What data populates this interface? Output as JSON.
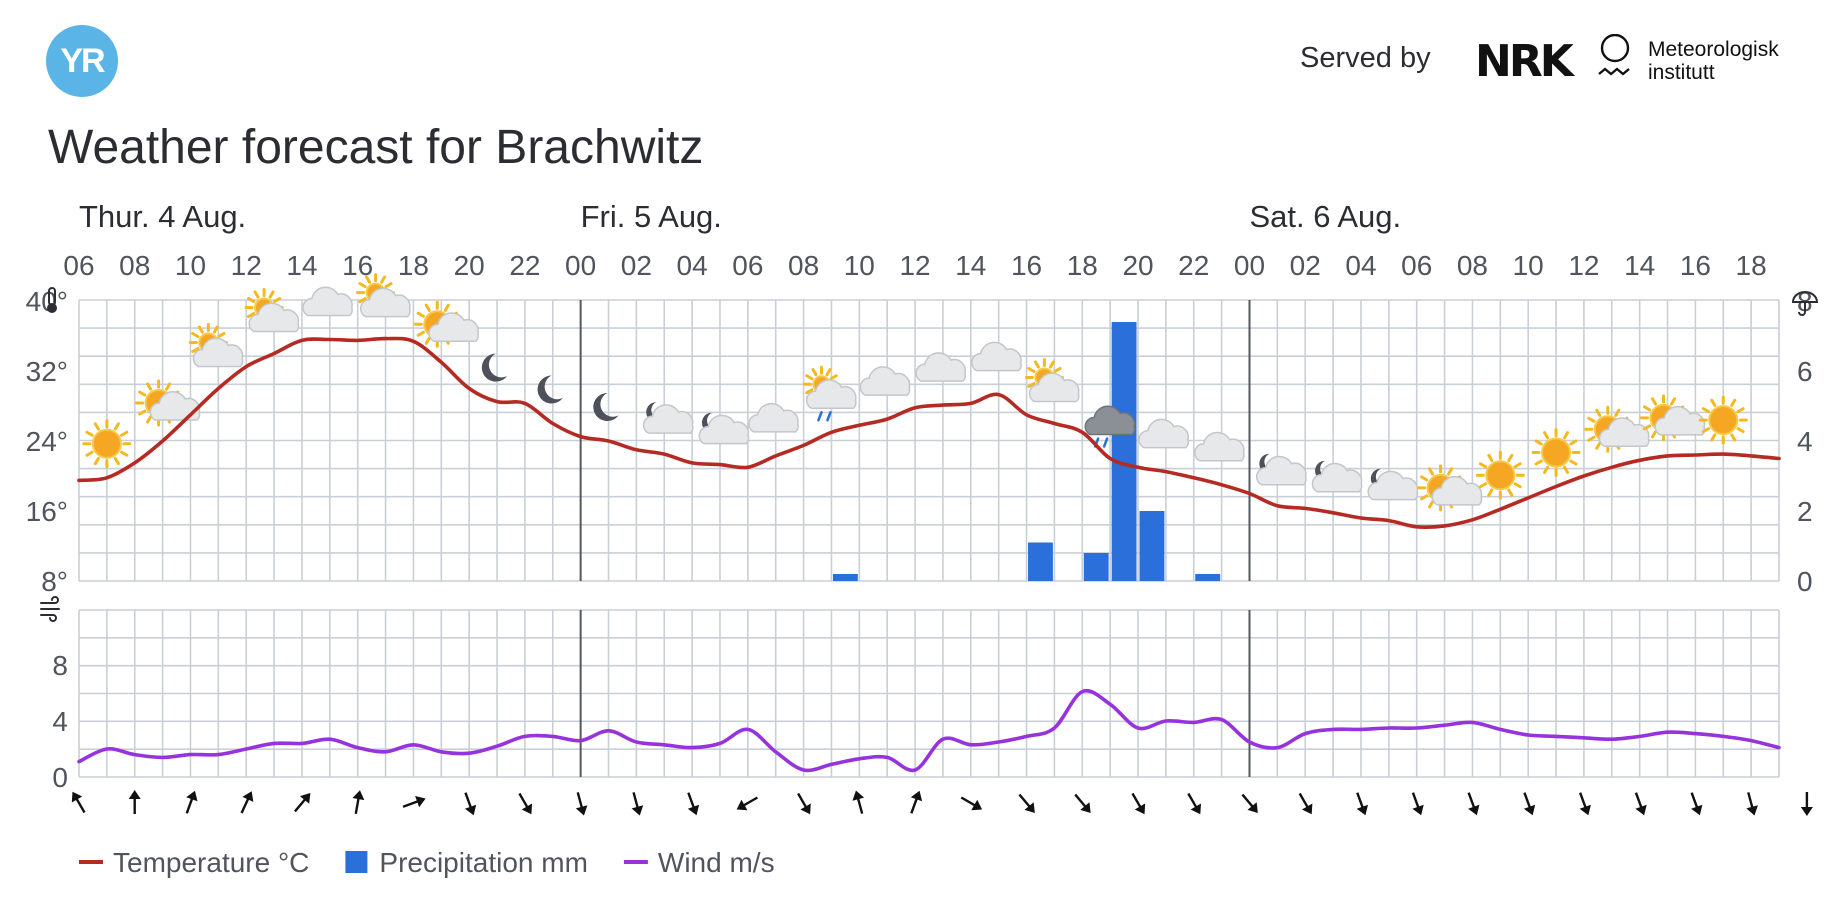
{
  "header": {
    "logo_text": "YR",
    "served_by": "Served by",
    "nrk_logo_text": "NRK",
    "met_line1": "Meteorologisk",
    "met_line2": "institutt"
  },
  "page": {
    "title": "Weather forecast for Brachwitz"
  },
  "colors": {
    "temperature": "#b52a22",
    "precipitation": "#2b6fda",
    "wind": "#9733dc",
    "grid": "#c9cfd7",
    "accent": "#5ab4e5"
  },
  "icons": {
    "temperature_axis": "thermometer-icon",
    "precipitation_axis": "umbrella-icon",
    "wind_axis": "wind-icon"
  },
  "chart_data": {
    "type": "line",
    "x_unit": "hour",
    "start": "Thu 4 Aug 06:00",
    "days": [
      {
        "label": "Thur. 4 Aug.",
        "start_hour": 0
      },
      {
        "label": "Fri. 5 Aug.",
        "start_hour": 18
      },
      {
        "label": "Sat. 6 Aug.",
        "start_hour": 42
      }
    ],
    "hour_ticks": [
      "06",
      "08",
      "10",
      "12",
      "14",
      "16",
      "18",
      "20",
      "22",
      "00",
      "02",
      "04",
      "06",
      "08",
      "10",
      "12",
      "14",
      "16",
      "18",
      "20",
      "22",
      "00",
      "02",
      "04",
      "06",
      "08",
      "10",
      "12",
      "14",
      "16",
      "18"
    ],
    "temperature_axis": {
      "ticks": [
        "40°",
        "32°",
        "24°",
        "16°",
        "8°"
      ],
      "min": 8,
      "max": 40
    },
    "precipitation_axis": {
      "ticks": [
        "8",
        "6",
        "4",
        "2",
        "0"
      ],
      "min": 0,
      "max": 8
    },
    "wind_axis": {
      "ticks": [
        "8",
        "4",
        "0"
      ],
      "min": 0,
      "max": 12
    },
    "series": [
      {
        "name": "Temperature °C",
        "unit": "°C",
        "values": [
          19.5,
          19.8,
          21.5,
          24.0,
          27.0,
          30.0,
          32.5,
          34.0,
          35.5,
          35.6,
          35.5,
          35.7,
          35.4,
          33.0,
          30.0,
          28.5,
          28.3,
          26.0,
          24.5,
          24.0,
          23.0,
          22.5,
          21.5,
          21.3,
          21.0,
          22.3,
          23.5,
          25.0,
          25.8,
          26.5,
          27.8,
          28.1,
          28.3,
          29.3,
          27.0,
          26.0,
          25.0,
          22.0,
          21.0,
          20.5,
          19.8,
          19.0,
          18.0,
          16.6,
          16.3,
          15.8,
          15.2,
          14.9,
          14.2,
          14.3,
          15.0,
          16.2,
          17.5,
          18.8,
          20.0,
          21.0,
          21.8,
          22.3,
          22.4,
          22.5,
          22.3,
          22.0
        ]
      },
      {
        "name": "Precipitation mm",
        "unit": "mm",
        "bars": [
          {
            "hour": 27,
            "value": 0.2
          },
          {
            "hour": 34,
            "value": 1.1
          },
          {
            "hour": 36,
            "value": 0.8
          },
          {
            "hour": 37,
            "value": 7.4
          },
          {
            "hour": 38,
            "value": 2.0
          },
          {
            "hour": 40,
            "value": 0.2
          }
        ]
      },
      {
        "name": "Wind m/s",
        "unit": "m/s",
        "values": [
          1.1,
          2.0,
          1.6,
          1.4,
          1.6,
          1.6,
          2.0,
          2.4,
          2.4,
          2.7,
          2.1,
          1.8,
          2.3,
          1.8,
          1.7,
          2.2,
          2.9,
          2.9,
          2.6,
          3.3,
          2.5,
          2.3,
          2.1,
          2.4,
          3.4,
          1.8,
          0.5,
          0.9,
          1.3,
          1.4,
          0.5,
          2.7,
          2.3,
          2.5,
          2.9,
          3.5,
          6.1,
          5.2,
          3.5,
          4.0,
          3.9,
          4.1,
          2.5,
          2.1,
          3.1,
          3.4,
          3.4,
          3.5,
          3.5,
          3.7,
          3.9,
          3.4,
          3.0,
          2.9,
          2.8,
          2.7,
          2.9,
          3.2,
          3.1,
          2.9,
          2.6,
          2.1
        ]
      }
    ],
    "wind_directions_deg": [
      -30,
      0,
      20,
      25,
      40,
      10,
      70,
      160,
      150,
      165,
      165,
      160,
      -120,
      150,
      -15,
      20,
      120,
      140,
      140,
      150,
      150,
      140,
      150,
      160,
      160,
      160,
      160,
      160,
      160,
      160,
      165,
      180
    ],
    "weather_symbols": [
      {
        "hour": 1,
        "symbol": "clear-sky-day"
      },
      {
        "hour": 3,
        "symbol": "fair-day"
      },
      {
        "hour": 5,
        "symbol": "partly-cloudy-day"
      },
      {
        "hour": 7,
        "symbol": "partly-cloudy-day"
      },
      {
        "hour": 9,
        "symbol": "cloudy"
      },
      {
        "hour": 11,
        "symbol": "partly-cloudy-day"
      },
      {
        "hour": 13,
        "symbol": "fair-day"
      },
      {
        "hour": 15,
        "symbol": "clear-sky-night"
      },
      {
        "hour": 17,
        "symbol": "clear-sky-night"
      },
      {
        "hour": 19,
        "symbol": "clear-sky-night"
      },
      {
        "hour": 21,
        "symbol": "partly-cloudy-night"
      },
      {
        "hour": 23,
        "symbol": "partly-cloudy-night"
      },
      {
        "hour": 25,
        "symbol": "cloudy"
      },
      {
        "hour": 27,
        "symbol": "light-rain-showers-day"
      },
      {
        "hour": 29,
        "symbol": "cloudy"
      },
      {
        "hour": 31,
        "symbol": "cloudy"
      },
      {
        "hour": 33,
        "symbol": "cloudy"
      },
      {
        "hour": 35,
        "symbol": "partly-cloudy-day"
      },
      {
        "hour": 37,
        "symbol": "rain"
      },
      {
        "hour": 39,
        "symbol": "cloudy"
      },
      {
        "hour": 41,
        "symbol": "cloudy"
      },
      {
        "hour": 43,
        "symbol": "partly-cloudy-night"
      },
      {
        "hour": 45,
        "symbol": "partly-cloudy-night"
      },
      {
        "hour": 47,
        "symbol": "partly-cloudy-night"
      },
      {
        "hour": 49,
        "symbol": "fair-day"
      },
      {
        "hour": 51,
        "symbol": "clear-sky-day"
      },
      {
        "hour": 53,
        "symbol": "clear-sky-day"
      },
      {
        "hour": 55,
        "symbol": "fair-day"
      },
      {
        "hour": 57,
        "symbol": "fair-day"
      },
      {
        "hour": 59,
        "symbol": "clear-sky-day"
      }
    ],
    "grid": true,
    "legend": {
      "placement": "bottom-left",
      "items": [
        {
          "label": "Temperature °C",
          "color": "#b52a22",
          "shape": "line"
        },
        {
          "label": "Precipitation mm",
          "color": "#2b6fda",
          "shape": "square"
        },
        {
          "label": "Wind m/s",
          "color": "#9733dc",
          "shape": "line"
        }
      ]
    }
  }
}
